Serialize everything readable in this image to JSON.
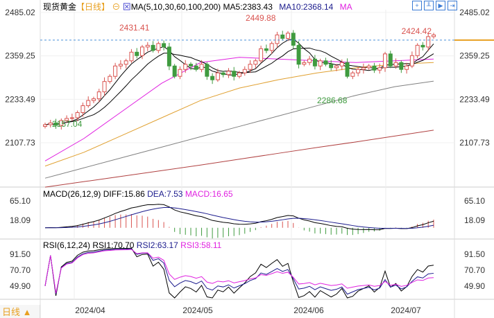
{
  "header": {
    "symbol": "现货黄金",
    "period": "【日线】",
    "ma_label": "MA(5,10,30,60,100,200)",
    "ma5": "MA5:2383.43",
    "ma10": "MA10:2368.14",
    "ma_more": "MA",
    "toolbar_icons": [
      "crosshair-icon",
      "candle-icon",
      "play-icon",
      "forward-icon"
    ]
  },
  "macd_header": {
    "label": "MACD(26,12,9)",
    "diff": "DIFF:15.86",
    "dea": "DEA:7.53",
    "macd": "MACD:16.65"
  },
  "rsi_header": {
    "label": "RSI(6,12,24)",
    "rsi1": "RSI1:70.70",
    "rsi2": "RSI2:63.17",
    "rsi3": "RSI3:58.11"
  },
  "footer": {
    "period_button": "日线 ▲"
  },
  "colors": {
    "up": "#d9534f",
    "down": "#3f9b3f",
    "ma5": "#000000",
    "ma10": "#000000",
    "ma30": "#e020e0",
    "ma60": "#e0a030",
    "ma100": "#808080",
    "ma200": "#b04040",
    "last_price": "#4a90d9"
  },
  "chart_data": [
    {
      "type": "candlestick",
      "title": "现货黄金",
      "y_ticks": [
        "2485.02",
        "2359.25",
        "2233.49",
        "2107.73"
      ],
      "ylim": [
        2107.73,
        2485.02
      ],
      "x_ticks": [
        "2024/04",
        "2024/05",
        "2024/06",
        "2024/07"
      ],
      "annotations": [
        {
          "text": "2431.41",
          "kind": "high"
        },
        {
          "text": "2449.88",
          "kind": "high"
        },
        {
          "text": "2424.42",
          "kind": "high"
        },
        {
          "text": "2286.68",
          "kind": "low"
        },
        {
          "text": "2157.04",
          "kind": "low"
        }
      ],
      "closes": [
        2160,
        2165,
        2158,
        2172,
        2178,
        2180,
        2195,
        2215,
        2230,
        2235,
        2255,
        2285,
        2300,
        2330,
        2335,
        2345,
        2370,
        2360,
        2385,
        2390,
        2375,
        2395,
        2385,
        2330,
        2300,
        2320,
        2335,
        2330,
        2320,
        2335,
        2300,
        2290,
        2310,
        2305,
        2315,
        2300,
        2310,
        2320,
        2335,
        2345,
        2380,
        2375,
        2395,
        2420,
        2410,
        2425,
        2390,
        2335,
        2340,
        2350,
        2330,
        2345,
        2335,
        2325,
        2330,
        2340,
        2300,
        2310,
        2320,
        2325,
        2330,
        2318,
        2325,
        2365,
        2330,
        2340,
        2320,
        2330,
        2360,
        2390,
        2385,
        2415,
        2420
      ],
      "ma_lines": {
        "MA30": [
          2055,
          2120,
          2200,
          2280,
          2340,
          2355,
          2350,
          2345,
          2340,
          2345,
          2350
        ],
        "MA60": [
          2040,
          2080,
          2130,
          2180,
          2230,
          2266,
          2290,
          2310,
          2325,
          2335,
          2340
        ],
        "MA100": [
          2005,
          2035,
          2065,
          2095,
          2125,
          2155,
          2185,
          2215,
          2245,
          2270,
          2286
        ],
        "MA200": [
          1979,
          1995,
          2011,
          2027,
          2043,
          2060,
          2077,
          2094,
          2110,
          2127,
          2144
        ]
      },
      "last_price": 2405
    },
    {
      "type": "line",
      "title": "MACD(26,12,9)",
      "y_ticks": [
        "65.10",
        "18.09"
      ]
    },
    {
      "type": "line",
      "title": "RSI(6,12,24)",
      "y_ticks": [
        "91.50",
        "70.70",
        "49.90"
      ]
    }
  ]
}
